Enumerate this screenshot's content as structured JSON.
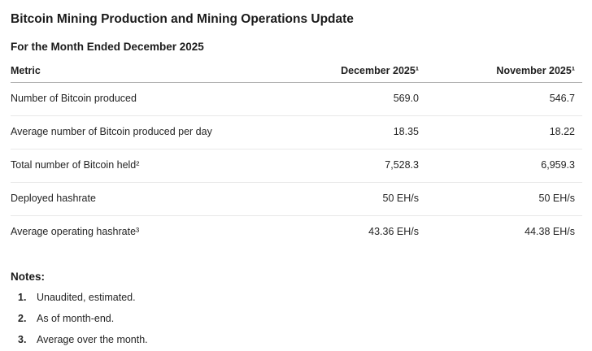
{
  "header": {
    "title": "Bitcoin Mining Production and Mining Operations Update",
    "subtitle": "For the Month Ended December 2025"
  },
  "table": {
    "columns": [
      "Metric",
      "December 2025¹",
      "November 2025¹"
    ],
    "rows": [
      {
        "metric": "Number of Bitcoin produced",
        "december": "569.0",
        "november": "546.7"
      },
      {
        "metric": "Average number of Bitcoin produced per day",
        "december": "18.35",
        "november": "18.22"
      },
      {
        "metric": "Total number of Bitcoin held²",
        "december": "7,528.3",
        "november": "6,959.3"
      },
      {
        "metric": "Deployed hashrate",
        "december": "50 EH/s",
        "november": "50 EH/s"
      },
      {
        "metric": "Average operating hashrate³",
        "december": "43.36 EH/s",
        "november": "44.38 EH/s"
      }
    ]
  },
  "notes": {
    "title": "Notes:",
    "items": [
      {
        "num": "1.",
        "text": "Unaudited, estimated."
      },
      {
        "num": "2.",
        "text": "As of month-end."
      },
      {
        "num": "3.",
        "text": "Average over the month."
      }
    ]
  },
  "colors": {
    "background": "#ffffff",
    "text": "#202020",
    "header_border": "#b1b1b1",
    "row_border": "#e8e8e8"
  }
}
